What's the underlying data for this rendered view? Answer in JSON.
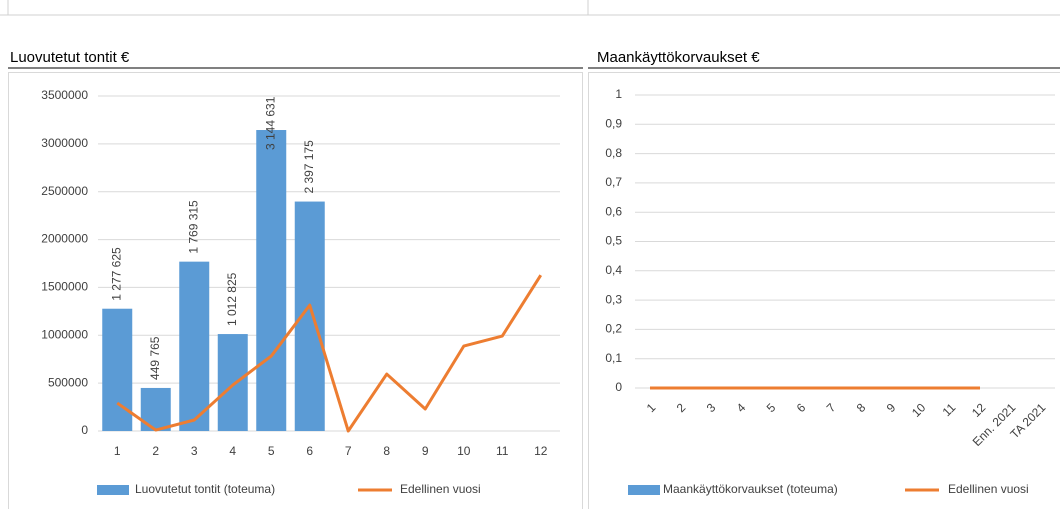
{
  "chart_data": [
    {
      "type": "combo",
      "title": "Luovutetut tontit €",
      "categories": [
        "1",
        "2",
        "3",
        "4",
        "5",
        "6",
        "7",
        "8",
        "9",
        "10",
        "11",
        "12"
      ],
      "series": [
        {
          "name": "Luovutetut tontit (toteuma)",
          "color": "#5b9bd5",
          "kind": "bar",
          "values": [
            1277625,
            449765,
            1769315,
            1012825,
            3144631,
            2397175,
            null,
            null,
            null,
            null,
            null,
            null
          ],
          "value_labels": [
            "1 277 625",
            "449 765",
            "1 769 315",
            "1 012 825",
            "3 144 631",
            "2 397 175",
            null,
            null,
            null,
            null,
            null,
            null
          ]
        },
        {
          "name": "Edellinen vuosi",
          "color": "#ed7d31",
          "kind": "line",
          "values": [
            292000,
            10000,
            115000,
            480000,
            783000,
            1315000,
            0,
            595000,
            230000,
            887000,
            992000,
            1628000
          ]
        }
      ],
      "ylim": [
        0,
        3500000
      ],
      "yticks": [
        0,
        500000,
        1000000,
        1500000,
        2000000,
        2500000,
        3000000,
        3500000
      ],
      "grid": true,
      "legend": "bottom"
    },
    {
      "type": "combo",
      "title": "Maankäyttökorvaukset €",
      "categories": [
        "1",
        "2",
        "3",
        "4",
        "5",
        "6",
        "7",
        "8",
        "9",
        "10",
        "11",
        "12",
        "Enn. 2021",
        "TA 2021"
      ],
      "series": [
        {
          "name": "Maankäyttökorvaukset (toteuma)",
          "color": "#5b9bd5",
          "kind": "bar",
          "values": [
            null,
            null,
            null,
            null,
            null,
            null,
            null,
            null,
            null,
            null,
            null,
            null,
            null,
            null
          ]
        },
        {
          "name": "Edellinen vuosi",
          "color": "#ed7d31",
          "kind": "line",
          "values": [
            0,
            0,
            0,
            0,
            0,
            0,
            0,
            0,
            0,
            0,
            0,
            0,
            null,
            null
          ]
        }
      ],
      "ylim": [
        0,
        1
      ],
      "yticks": [
        0,
        {
          "value": 0.1,
          "label": "0,1"
        },
        {
          "value": 0.2,
          "label": "0,2"
        },
        {
          "value": 0.3,
          "label": "0,3"
        },
        {
          "value": 0.4,
          "label": "0,4"
        },
        {
          "value": 0.5,
          "label": "0,5"
        },
        {
          "value": 0.6,
          "label": "0,6"
        },
        {
          "value": 0.7,
          "label": "0,7"
        },
        {
          "value": 0.8,
          "label": "0,8"
        },
        {
          "value": 0.9,
          "label": "0,9"
        },
        1
      ],
      "grid": true,
      "legend": "bottom",
      "rotate_x_labels": true
    }
  ]
}
